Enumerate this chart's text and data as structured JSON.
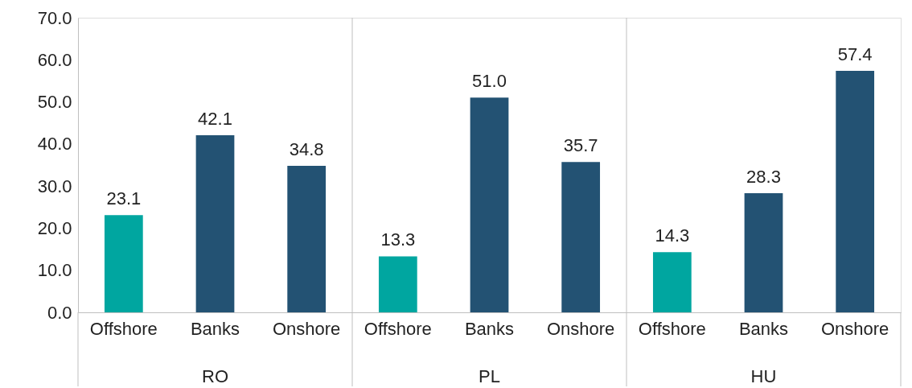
{
  "chart_data": {
    "type": "bar",
    "categories": [
      "Offshore",
      "Banks",
      "Onshore",
      "Offshore",
      "Banks",
      "Onshore",
      "Offshore",
      "Banks",
      "Onshore"
    ],
    "values": [
      23.1,
      42.1,
      34.8,
      13.3,
      51.0,
      35.7,
      14.3,
      28.3,
      57.4
    ],
    "colors": [
      "#00a6a0",
      "#235273",
      "#235273",
      "#00a6a0",
      "#235273",
      "#235273",
      "#00a6a0",
      "#235273",
      "#235273"
    ],
    "annotations": [
      "RO",
      "PL",
      "HU"
    ],
    "ylim": [
      0,
      70
    ],
    "yticks": [
      {
        "value": 0,
        "label": "0.0"
      },
      {
        "value": 10,
        "label": "10.0"
      },
      {
        "value": 20,
        "label": "20.0"
      },
      {
        "value": 30,
        "label": "30.0"
      },
      {
        "value": 40,
        "label": "40.0"
      },
      {
        "value": 50,
        "label": "50.0"
      },
      {
        "value": 60,
        "label": "60.0"
      },
      {
        "value": 70,
        "label": "70.0"
      }
    ],
    "value_labels": [
      "23.1",
      "42.1",
      "34.8",
      "13.3",
      "51.0",
      "35.7",
      "14.3",
      "28.3",
      "57.4"
    ],
    "grid": false
  }
}
